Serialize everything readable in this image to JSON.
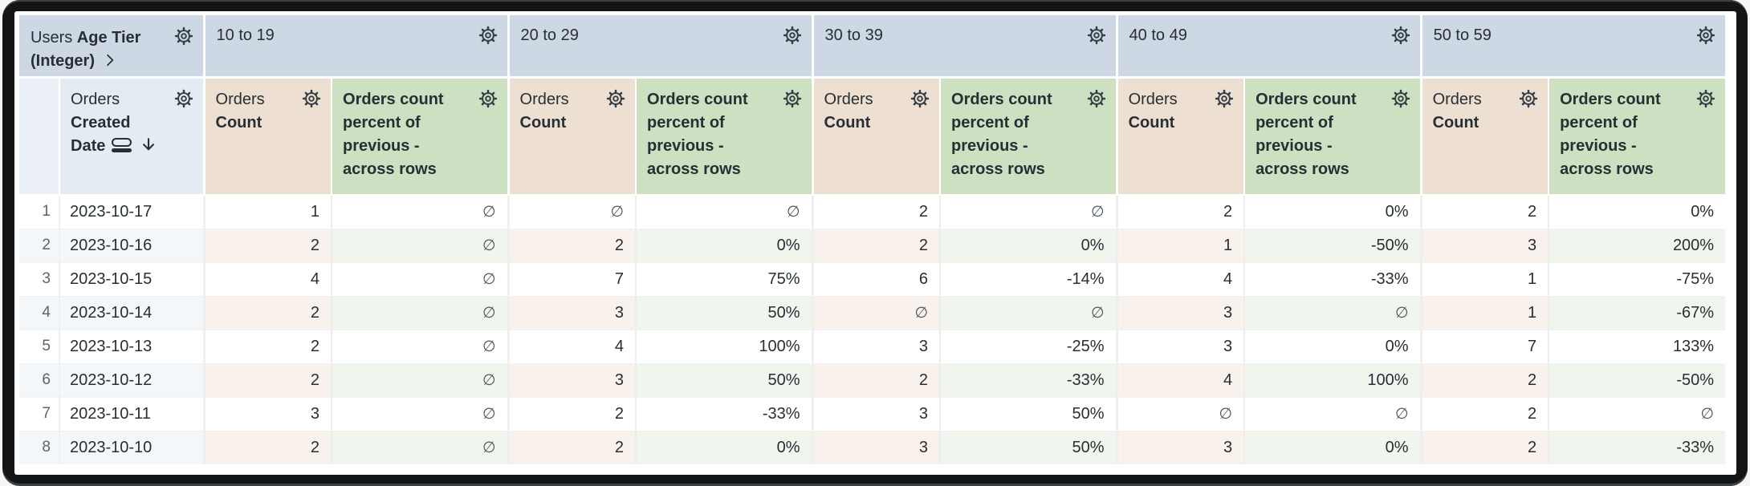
{
  "table": {
    "corner": {
      "prefix": "Users",
      "field": "Age Tier (Integer)"
    },
    "row_header": {
      "prefix": "Orders",
      "field": "Created Date"
    },
    "pivot_groups": [
      "10 to 19",
      "20 to 29",
      "30 to 39",
      "40 to 49",
      "50 to 59"
    ],
    "measures": [
      {
        "prefix": "Orders",
        "field": "Count"
      },
      {
        "prefix": "",
        "field": "Orders count percent of previous - across rows"
      }
    ],
    "null_symbol": "∅",
    "rows": [
      {
        "index": "1",
        "date": "2023-10-17",
        "values": [
          "1",
          "∅",
          "∅",
          "∅",
          "2",
          "∅",
          "2",
          "0%",
          "2",
          "0%"
        ]
      },
      {
        "index": "2",
        "date": "2023-10-16",
        "values": [
          "2",
          "∅",
          "2",
          "0%",
          "2",
          "0%",
          "1",
          "-50%",
          "3",
          "200%"
        ]
      },
      {
        "index": "3",
        "date": "2023-10-15",
        "values": [
          "4",
          "∅",
          "7",
          "75%",
          "6",
          "-14%",
          "4",
          "-33%",
          "1",
          "-75%"
        ]
      },
      {
        "index": "4",
        "date": "2023-10-14",
        "values": [
          "2",
          "∅",
          "3",
          "50%",
          "∅",
          "∅",
          "3",
          "∅",
          "1",
          "-67%"
        ]
      },
      {
        "index": "5",
        "date": "2023-10-13",
        "values": [
          "2",
          "∅",
          "4",
          "100%",
          "3",
          "-25%",
          "3",
          "0%",
          "7",
          "133%"
        ]
      },
      {
        "index": "6",
        "date": "2023-10-12",
        "values": [
          "2",
          "∅",
          "3",
          "50%",
          "2",
          "-33%",
          "4",
          "100%",
          "2",
          "-50%"
        ]
      },
      {
        "index": "7",
        "date": "2023-10-11",
        "values": [
          "3",
          "∅",
          "2",
          "-33%",
          "3",
          "50%",
          "∅",
          "∅",
          "2",
          "∅"
        ]
      },
      {
        "index": "8",
        "date": "2023-10-10",
        "values": [
          "2",
          "∅",
          "2",
          "0%",
          "3",
          "50%",
          "3",
          "0%",
          "2",
          "-33%"
        ]
      }
    ],
    "colors": {
      "pivot_header_blue": "#cdd8e4",
      "date_header_blue": "#e3ebf3",
      "count_header_tan": "#ede0d3",
      "percent_header_green": "#cde0c2",
      "even_row_blue": "#f4f7fa",
      "even_row_tan": "#f9f2ec",
      "even_row_green": "#f0f6ee",
      "text": "#272e34"
    }
  }
}
